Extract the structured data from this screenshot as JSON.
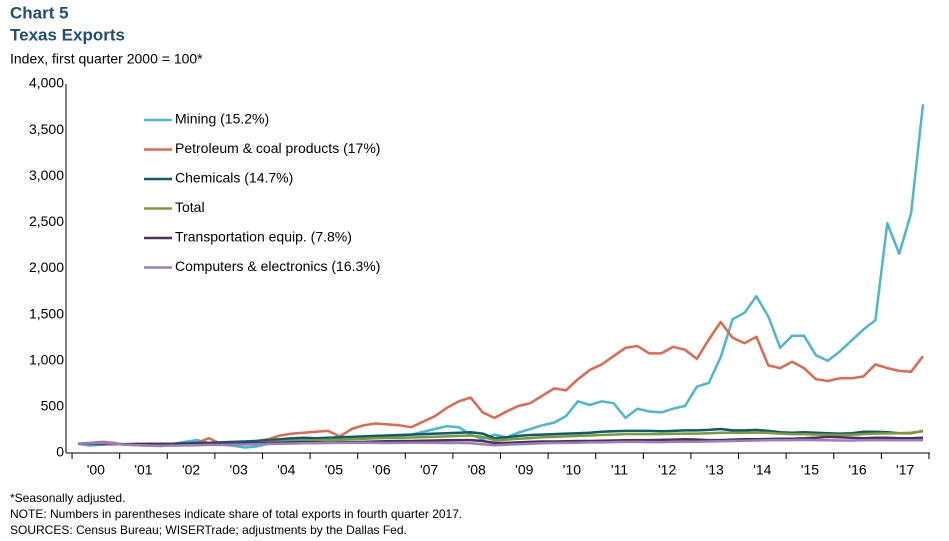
{
  "chart_data": {
    "type": "line",
    "title": "Chart 5",
    "subtitle": "Texas Exports",
    "y_axis_label": "Index, first quarter 2000 = 100*",
    "categories": [
      null,
      "'00",
      null,
      null,
      null,
      "'01",
      null,
      null,
      null,
      "'02",
      null,
      null,
      null,
      "'03",
      null,
      null,
      null,
      "'04",
      null,
      null,
      null,
      "'05",
      null,
      null,
      null,
      "'06",
      null,
      null,
      null,
      "'07",
      null,
      null,
      null,
      "'08",
      null,
      null,
      null,
      "'09",
      null,
      null,
      null,
      "'10",
      null,
      null,
      null,
      "'11",
      null,
      null,
      null,
      "'12",
      null,
      null,
      null,
      "'13",
      null,
      null,
      null,
      "'14",
      null,
      null,
      null,
      "'15",
      null,
      null,
      null,
      "'16",
      null,
      null,
      null,
      "'17",
      null,
      null
    ],
    "ylim": [
      0,
      4000
    ],
    "yticks": [
      0,
      500,
      {
        "value": 1000,
        "label": "1,000"
      },
      {
        "value": 1500,
        "label": "1,500"
      },
      {
        "value": 2000,
        "label": "2,000"
      },
      {
        "value": 2500,
        "label": "2,500"
      },
      {
        "value": 3000,
        "label": "3,000"
      },
      {
        "value": 3500,
        "label": "3,500"
      },
      {
        "value": 4000,
        "label": "4,000"
      }
    ],
    "series": [
      {
        "name": "Mining (15.2%)",
        "color": "#4bb8cf",
        "values": [
          100,
          80,
          90,
          100,
          90,
          85,
          80,
          75,
          100,
          120,
          140,
          110,
          90,
          80,
          60,
          70,
          100,
          120,
          140,
          150,
          140,
          130,
          140,
          150,
          160,
          170,
          180,
          190,
          200,
          230,
          260,
          290,
          280,
          200,
          150,
          200,
          170,
          220,
          260,
          300,
          330,
          400,
          560,
          520,
          560,
          540,
          380,
          480,
          450,
          440,
          480,
          510,
          720,
          760,
          1040,
          1450,
          1520,
          1700,
          1480,
          1140,
          1270,
          1270,
          1060,
          1000,
          1100,
          1220,
          1340,
          1440,
          2490,
          2160,
          2600,
          3780
        ]
      },
      {
        "name": "Petroleum & coal products (17%)",
        "color": "#e2674e",
        "values": [
          100,
          110,
          120,
          110,
          90,
          100,
          90,
          90,
          100,
          100,
          110,
          160,
          100,
          110,
          120,
          130,
          150,
          190,
          210,
          220,
          230,
          240,
          180,
          260,
          300,
          320,
          310,
          300,
          280,
          340,
          400,
          490,
          560,
          600,
          440,
          380,
          450,
          510,
          540,
          620,
          700,
          680,
          800,
          900,
          960,
          1050,
          1140,
          1160,
          1080,
          1080,
          1150,
          1120,
          1020,
          1230,
          1420,
          1250,
          1190,
          1260,
          950,
          920,
          990,
          920,
          800,
          780,
          810,
          810,
          830,
          960,
          920,
          890,
          880,
          1050
        ]
      },
      {
        "name": "Chemicals (14.7%)",
        "color": "#0b5c70",
        "values": [
          100,
          105,
          100,
          95,
          95,
          90,
          95,
          100,
          100,
          105,
          110,
          110,
          115,
          120,
          125,
          130,
          140,
          150,
          160,
          165,
          160,
          165,
          170,
          175,
          180,
          185,
          190,
          195,
          200,
          205,
          210,
          215,
          220,
          225,
          210,
          160,
          170,
          185,
          195,
          200,
          205,
          210,
          215,
          220,
          230,
          235,
          240,
          240,
          240,
          235,
          240,
          245,
          245,
          250,
          260,
          245,
          245,
          250,
          240,
          225,
          220,
          225,
          220,
          215,
          210,
          215,
          230,
          230,
          225,
          215,
          215,
          240
        ]
      },
      {
        "name": "Total",
        "color": "#7d9a34",
        "values": [
          100,
          102,
          104,
          100,
          96,
          94,
          92,
          90,
          92,
          95,
          98,
          100,
          100,
          102,
          105,
          110,
          118,
          125,
          130,
          135,
          138,
          142,
          145,
          150,
          155,
          160,
          163,
          165,
          168,
          172,
          176,
          180,
          185,
          190,
          175,
          140,
          145,
          155,
          162,
          170,
          175,
          180,
          185,
          190,
          195,
          200,
          205,
          205,
          205,
          205,
          208,
          210,
          210,
          215,
          220,
          220,
          220,
          222,
          218,
          210,
          205,
          205,
          200,
          198,
          195,
          198,
          205,
          210,
          212,
          215,
          220,
          235
        ]
      },
      {
        "name": "Transportation equip. (7.8%)",
        "color": "#4f2f5e",
        "values": [
          100,
          100,
          98,
          95,
          95,
          98,
          100,
          98,
          95,
          95,
          100,
          100,
          100,
          102,
          105,
          108,
          110,
          112,
          115,
          118,
          115,
          112,
          115,
          118,
          120,
          125,
          128,
          130,
          130,
          132,
          135,
          138,
          140,
          140,
          130,
          110,
          110,
          115,
          120,
          125,
          125,
          128,
          130,
          130,
          132,
          135,
          138,
          140,
          140,
          142,
          145,
          150,
          145,
          140,
          140,
          145,
          148,
          150,
          152,
          155,
          155,
          160,
          165,
          175,
          170,
          165,
          160,
          165,
          165,
          160,
          160,
          165
        ]
      },
      {
        "name": "Computers & electronics (16.3%)",
        "color": "#9a7fc0",
        "values": [
          100,
          105,
          110,
          100,
          90,
          85,
          80,
          78,
          80,
          82,
          85,
          88,
          88,
          90,
          92,
          95,
          98,
          100,
          102,
          105,
          105,
          108,
          110,
          112,
          112,
          110,
          108,
          110,
          112,
          112,
          110,
          108,
          108,
          105,
          95,
          85,
          90,
          95,
          100,
          105,
          108,
          110,
          112,
          115,
          115,
          118,
          120,
          120,
          118,
          118,
          120,
          122,
          122,
          125,
          128,
          130,
          132,
          135,
          138,
          140,
          140,
          142,
          140,
          138,
          135,
          135,
          138,
          140,
          140,
          138,
          138,
          140
        ]
      }
    ],
    "notes": [
      "*Seasonally adjusted.",
      "NOTE: Numbers in parentheses indicate share of total exports in fourth quarter 2017.",
      "SOURCES: Census Bureau; WISERTrade; adjustments by the Dallas Fed."
    ]
  }
}
